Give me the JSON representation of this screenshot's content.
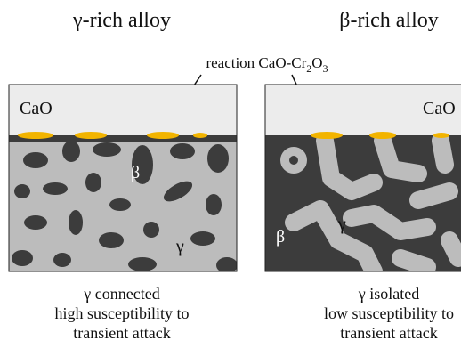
{
  "panels": [
    {
      "title": "γ-rich alloy",
      "oxide_label": "CaO",
      "phase_labels": [
        "β",
        "γ"
      ],
      "caption": [
        "γ connected",
        "high susceptibility to",
        "transient attack"
      ]
    },
    {
      "title": "β-rich alloy",
      "oxide_label": "CaO",
      "phase_labels": [
        "β",
        "γ"
      ],
      "caption": [
        "γ isolated",
        "low susceptibility to",
        "transient attack"
      ]
    }
  ],
  "annotation": {
    "parts": [
      "reaction CaO-Cr",
      "2",
      "O",
      "3"
    ]
  }
}
